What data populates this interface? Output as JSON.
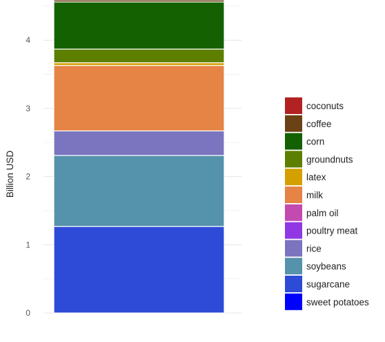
{
  "chart_data": {
    "type": "bar",
    "stacked": true,
    "categories": [
      ""
    ],
    "ylabel": "Billion USD",
    "xlabel": "",
    "ylim": [
      0,
      4.72
    ],
    "yticks": [
      0,
      1,
      2,
      3,
      4
    ],
    "grid": true,
    "legend_position": "right",
    "series": [
      {
        "name": "sweet potatoes",
        "values": [
          0.0
        ],
        "color": "#0000ff"
      },
      {
        "name": "sugarcane",
        "values": [
          1.27
        ],
        "color": "#2d4bd6"
      },
      {
        "name": "soybeans",
        "values": [
          1.04
        ],
        "color": "#5592ac"
      },
      {
        "name": "rice",
        "values": [
          0.36
        ],
        "color": "#7b74bf"
      },
      {
        "name": "poultry meat",
        "values": [
          0.0
        ],
        "color": "#9038e4"
      },
      {
        "name": "palm oil",
        "values": [
          0.0
        ],
        "color": "#c24ab0"
      },
      {
        "name": "milk",
        "values": [
          0.96
        ],
        "color": "#e58444"
      },
      {
        "name": "latex",
        "values": [
          0.04
        ],
        "color": "#d4a000"
      },
      {
        "name": "groundnuts",
        "values": [
          0.2
        ],
        "color": "#5c7f00"
      },
      {
        "name": "corn",
        "values": [
          0.69
        ],
        "color": "#136100"
      },
      {
        "name": "coffee",
        "values": [
          0.03
        ],
        "color": "#6a4216"
      },
      {
        "name": "coconuts",
        "values": [
          0.0
        ],
        "color": "#b32222"
      }
    ],
    "legend_order": [
      "coconuts",
      "coffee",
      "corn",
      "groundnuts",
      "latex",
      "milk",
      "palm oil",
      "poultry meat",
      "rice",
      "soybeans",
      "sugarcane",
      "sweet potatoes"
    ]
  }
}
